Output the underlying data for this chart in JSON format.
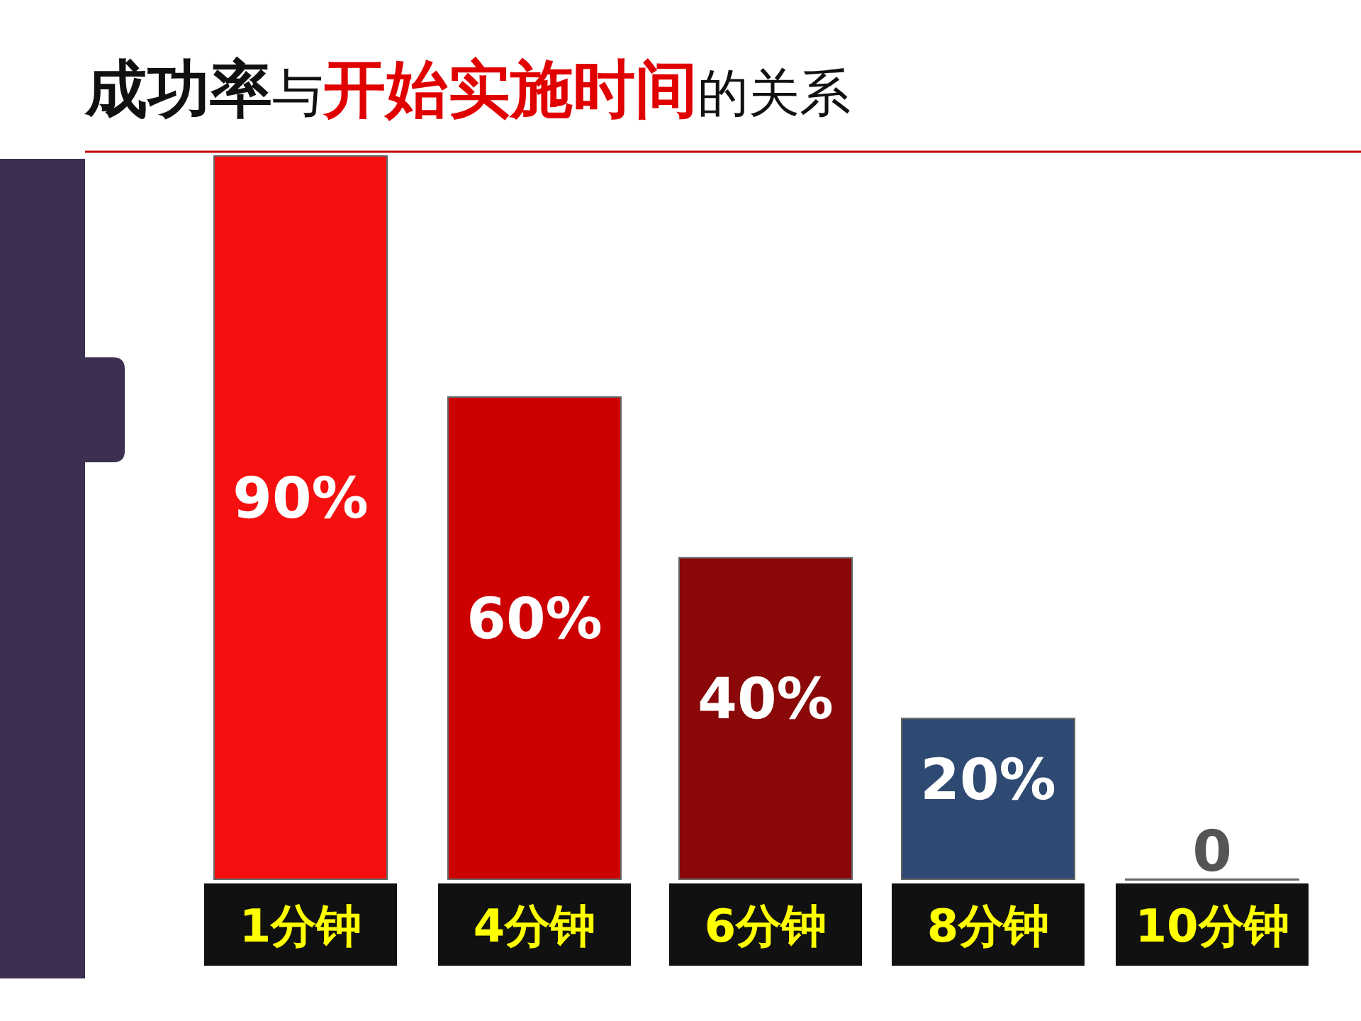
{
  "chart_data": {
    "type": "bar",
    "title": "**成功率**与**开始实施时间**的关系",
    "categories": [
      "1分钟",
      "4分钟",
      "6分钟",
      "8分钟",
      "10分钟"
    ],
    "values": [
      90,
      60,
      40,
      20,
      0
    ],
    "colors": [
      "#f50f0f",
      "#cc0000",
      "#8a0808",
      "#2f4a72",
      "#8c8c8c"
    ],
    "data_labels": true,
    "value_labels": [
      "90%",
      "60%",
      "40%",
      "20%",
      "0"
    ]
  }
}
